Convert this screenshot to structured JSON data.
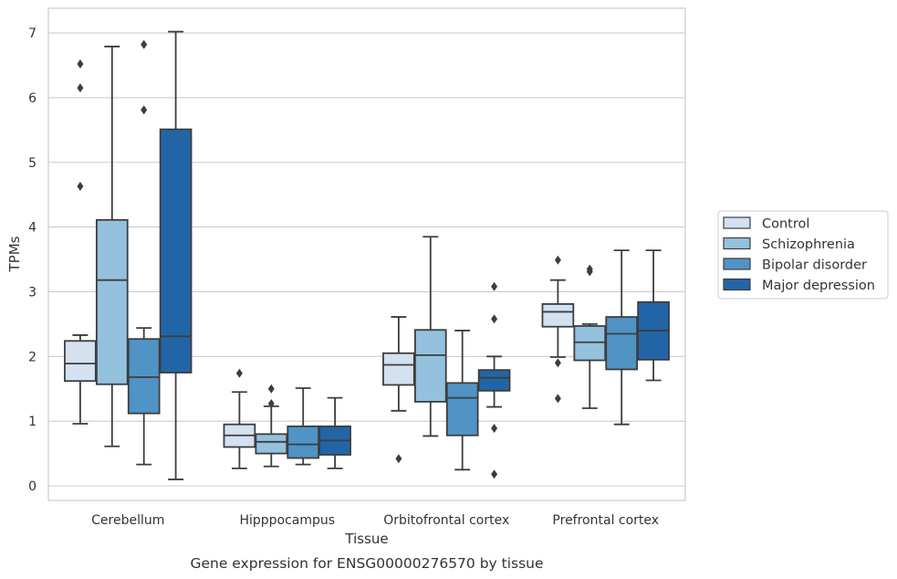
{
  "chart_data": {
    "type": "boxplot",
    "caption": "Gene expression for ENSG00000276570 by tissue",
    "xlabel": "Tissue",
    "ylabel": "TPMs",
    "ylim": [
      -0.2,
      7.4
    ],
    "yticks": [
      0,
      1,
      2,
      3,
      4,
      5,
      6,
      7
    ],
    "grid": "horizontal",
    "legend_position": "right",
    "categories": [
      "Cerebellum",
      "Hipppocampus",
      "Orbitofrontal cortex",
      "Prefrontal cortex"
    ],
    "series": [
      {
        "name": "Control",
        "color": "#d3e1f0",
        "boxes": [
          {
            "whisker_low": 0.96,
            "q1": 1.62,
            "median": 1.89,
            "q3": 2.24,
            "whisker_high": 2.33,
            "outliers": [
              4.63,
              6.15,
              6.52
            ]
          },
          {
            "whisker_low": 0.27,
            "q1": 0.6,
            "median": 0.78,
            "q3": 0.95,
            "whisker_high": 1.45,
            "outliers": [
              1.74
            ]
          },
          {
            "whisker_low": 1.16,
            "q1": 1.56,
            "median": 1.87,
            "q3": 2.05,
            "whisker_high": 2.61,
            "outliers": [
              0.42
            ]
          },
          {
            "whisker_low": 1.99,
            "q1": 2.46,
            "median": 2.69,
            "q3": 2.81,
            "whisker_high": 3.18,
            "outliers": [
              1.35,
              1.9,
              3.49
            ]
          }
        ]
      },
      {
        "name": "Schizophrenia",
        "color": "#94c1dd",
        "boxes": [
          {
            "whisker_low": 0.61,
            "q1": 1.57,
            "median": 3.18,
            "q3": 4.11,
            "whisker_high": 6.79,
            "outliers": []
          },
          {
            "whisker_low": 0.3,
            "q1": 0.5,
            "median": 0.68,
            "q3": 0.8,
            "whisker_high": 1.23,
            "outliers": [
              1.27,
              1.5
            ]
          },
          {
            "whisker_low": 0.77,
            "q1": 1.3,
            "median": 2.02,
            "q3": 2.41,
            "whisker_high": 3.85,
            "outliers": []
          },
          {
            "whisker_low": 1.2,
            "q1": 1.94,
            "median": 2.22,
            "q3": 2.47,
            "whisker_high": 2.5,
            "outliers": [
              3.31,
              3.35
            ]
          }
        ]
      },
      {
        "name": "Bipolar disorder",
        "color": "#5093c5",
        "boxes": [
          {
            "whisker_low": 0.33,
            "q1": 1.12,
            "median": 1.68,
            "q3": 2.27,
            "whisker_high": 2.44,
            "outliers": [
              5.81,
              6.82
            ]
          },
          {
            "whisker_low": 0.33,
            "q1": 0.43,
            "median": 0.64,
            "q3": 0.92,
            "whisker_high": 1.51,
            "outliers": []
          },
          {
            "whisker_low": 0.25,
            "q1": 0.78,
            "median": 1.36,
            "q3": 1.59,
            "whisker_high": 2.4,
            "outliers": []
          },
          {
            "whisker_low": 0.95,
            "q1": 1.8,
            "median": 2.35,
            "q3": 2.61,
            "whisker_high": 3.64,
            "outliers": []
          }
        ]
      },
      {
        "name": "Major depression",
        "color": "#2265a7",
        "boxes": [
          {
            "whisker_low": 0.1,
            "q1": 1.75,
            "median": 2.31,
            "q3": 5.51,
            "whisker_high": 7.02,
            "outliers": []
          },
          {
            "whisker_low": 0.27,
            "q1": 0.48,
            "median": 0.7,
            "q3": 0.92,
            "whisker_high": 1.36,
            "outliers": []
          },
          {
            "whisker_low": 1.22,
            "q1": 1.47,
            "median": 1.67,
            "q3": 1.79,
            "whisker_high": 2.0,
            "outliers": [
              0.18,
              0.89,
              2.58,
              3.08
            ]
          },
          {
            "whisker_low": 1.63,
            "q1": 1.95,
            "median": 2.4,
            "q3": 2.84,
            "whisker_high": 3.64,
            "outliers": []
          }
        ]
      }
    ]
  }
}
